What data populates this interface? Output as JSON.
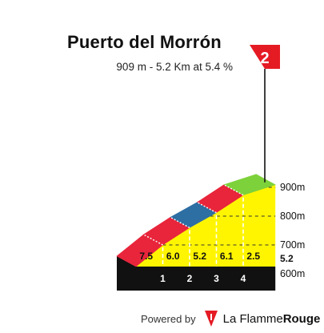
{
  "title": "Puerto del Morrón",
  "subtitle": "909 m - 5.2 Km at 5.4 %",
  "category_badge": "2",
  "footer": {
    "powered_by": "Powered by",
    "brand_part1": "La Flamme",
    "brand_part2": "Rouge",
    "logo_icon": "flame-drop-icon"
  },
  "colors": {
    "profile_fill": "#fff500",
    "base_band": "#111111",
    "side_face": "#a27a10",
    "badge": "#e51b24",
    "grade_low": "#2d6ea3",
    "grade_mid": "#7dd13b",
    "grade_high": "#e8253b"
  },
  "chart_data": {
    "type": "area",
    "title": "Puerto del Morrón",
    "xlabel": "",
    "ylabel": "",
    "x_unit": "km",
    "y_unit": "m",
    "xlim": [
      0,
      5.2
    ],
    "ylim": [
      625,
      909
    ],
    "x_ticks": [
      "1",
      "2",
      "3",
      "4"
    ],
    "x_tick_values": [
      1,
      2,
      3,
      4
    ],
    "y_ticks": [
      "600m",
      "700m",
      "800m",
      "900m"
    ],
    "y_tick_values": [
      600,
      700,
      800,
      900
    ],
    "grid": true,
    "total_distance_label": "5.2",
    "segments": [
      {
        "start": 0,
        "end": 1,
        "gradient": 7.5,
        "label": "7.5",
        "color": "#e8253b"
      },
      {
        "start": 1,
        "end": 2,
        "gradient": 6.0,
        "label": "6.0",
        "color": "#e8253b"
      },
      {
        "start": 2,
        "end": 3,
        "gradient": 5.2,
        "label": "5.2",
        "color": "#2d6ea3"
      },
      {
        "start": 3,
        "end": 4,
        "gradient": 6.1,
        "label": "6.1",
        "color": "#e8253b"
      },
      {
        "start": 4,
        "end": 5.2,
        "gradient": 2.5,
        "label": "2.5",
        "color": "#7dd13b"
      }
    ],
    "x": [
      0,
      1,
      2,
      3,
      4,
      4.6,
      5.2
    ],
    "y": [
      625,
      700,
      760,
      812,
      873,
      898,
      909
    ]
  }
}
